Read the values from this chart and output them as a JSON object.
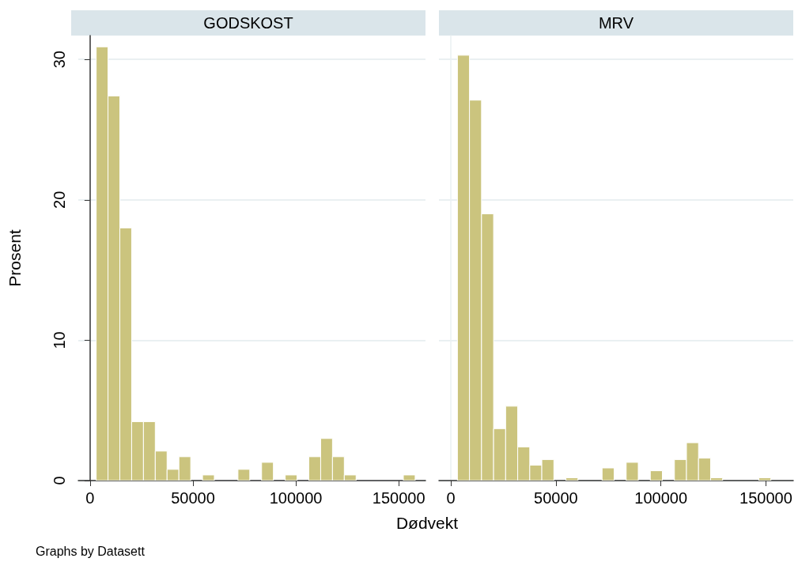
{
  "chart_data": [
    {
      "type": "histogram",
      "title": "GODSKOST",
      "ylabel": "Prosent",
      "xlabel": "Dødvekt",
      "annotations": [
        "Graphs by Datasett"
      ],
      "color": "#cbc47e",
      "bins": [
        3000,
        8740,
        14480,
        20220,
        25960,
        31700,
        37440,
        43180,
        48920,
        54660,
        60400,
        66140,
        71880,
        77620,
        83360,
        89100,
        94840,
        100580,
        106320,
        112060,
        117800,
        123540,
        129280,
        135020,
        140760,
        146500,
        152240,
        157980
      ],
      "values": [
        30.9,
        27.4,
        18.0,
        4.2,
        4.2,
        2.1,
        0.8,
        1.7,
        0,
        0.4,
        0,
        0,
        0.8,
        0,
        1.3,
        0,
        0.4,
        0,
        1.7,
        3.0,
        1.7,
        0.4,
        0,
        0,
        0,
        0,
        0.4
      ],
      "xlim": [
        -5700,
        163000
      ],
      "xticks": [
        0,
        50000,
        100000,
        150000
      ],
      "ylim": [
        0,
        31.7
      ],
      "yticks": [
        0,
        10,
        20,
        30
      ],
      "grid": "y"
    },
    {
      "type": "histogram",
      "title": "MRV",
      "color": "#cbc47e",
      "bins": [
        3100,
        8840,
        14580,
        20320,
        26060,
        31800,
        37540,
        43280,
        49020,
        54760,
        60500,
        66240,
        71980,
        77720,
        83460,
        89200,
        94940,
        100680,
        106420,
        112160,
        117900,
        123640,
        129380,
        135120,
        140860,
        146600,
        152340
      ],
      "values": [
        30.3,
        27.1,
        19.0,
        3.7,
        5.3,
        2.4,
        1.1,
        1.5,
        0,
        0.2,
        0,
        0,
        0.9,
        0,
        1.3,
        0,
        0.7,
        0,
        1.5,
        2.7,
        1.6,
        0.2,
        0,
        0,
        0,
        0.2
      ],
      "xlim": [
        -5700,
        163000
      ],
      "xticks": [
        0,
        50000,
        100000,
        150000
      ],
      "ylim": [
        0,
        31.7
      ],
      "yticks": [
        0,
        10,
        20,
        30
      ],
      "grid": "y",
      "tick_labels": "x"
    }
  ]
}
